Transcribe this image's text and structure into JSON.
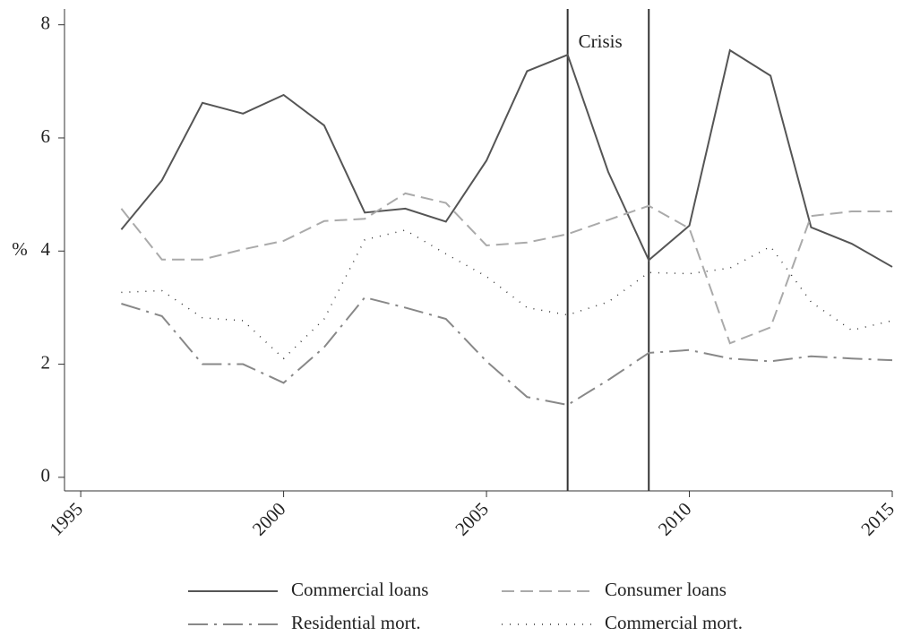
{
  "chart_data": {
    "type": "line",
    "x": [
      1996,
      1997,
      1998,
      1999,
      2000,
      2001,
      2002,
      2003,
      2004,
      2005,
      2006,
      2007,
      2008,
      2009,
      2010,
      2011,
      2012,
      2013,
      2014,
      2015
    ],
    "series": [
      {
        "name": "Commercial loans",
        "color": "#555555",
        "dash": "none",
        "values": [
          4.38,
          5.25,
          6.62,
          6.43,
          6.76,
          6.22,
          4.68,
          4.75,
          4.52,
          5.6,
          7.18,
          7.47,
          5.4,
          3.84,
          4.45,
          7.55,
          7.1,
          4.42,
          4.13,
          3.72
        ]
      },
      {
        "name": "Consumer loans",
        "color": "#aaaaaa",
        "dash": "14 7",
        "values": [
          4.75,
          3.85,
          3.85,
          4.03,
          4.18,
          4.53,
          4.57,
          5.02,
          4.85,
          4.1,
          4.15,
          4.3,
          4.55,
          4.8,
          4.4,
          2.37,
          2.65,
          4.62,
          4.7,
          4.7
        ]
      },
      {
        "name": "Residential mort.",
        "color": "#888888",
        "dash": "22 7 3 7",
        "values": [
          3.07,
          2.85,
          2.0,
          2.0,
          1.67,
          2.3,
          3.18,
          3.0,
          2.8,
          2.05,
          1.42,
          1.28,
          1.72,
          2.2,
          2.25,
          2.1,
          2.05,
          2.14,
          2.1,
          2.07
        ]
      },
      {
        "name": "Commercial mort.",
        "color": "#333333",
        "dash": "1 8",
        "values": [
          3.27,
          3.3,
          2.82,
          2.77,
          2.1,
          2.8,
          4.2,
          4.37,
          3.95,
          3.55,
          3.0,
          2.87,
          3.1,
          3.62,
          3.6,
          3.7,
          4.08,
          3.1,
          2.6,
          2.77
        ]
      }
    ],
    "ylabel": "%",
    "xlim": [
      1994.6,
      2015
    ],
    "ylim": [
      -0.24,
      8.28
    ],
    "xticks": [
      1995,
      2000,
      2005,
      2010,
      2015
    ],
    "yticks": [
      0,
      2,
      4,
      6,
      8
    ],
    "vlines": [
      2007,
      2009
    ],
    "annotation": "Crisis",
    "grid": false
  }
}
